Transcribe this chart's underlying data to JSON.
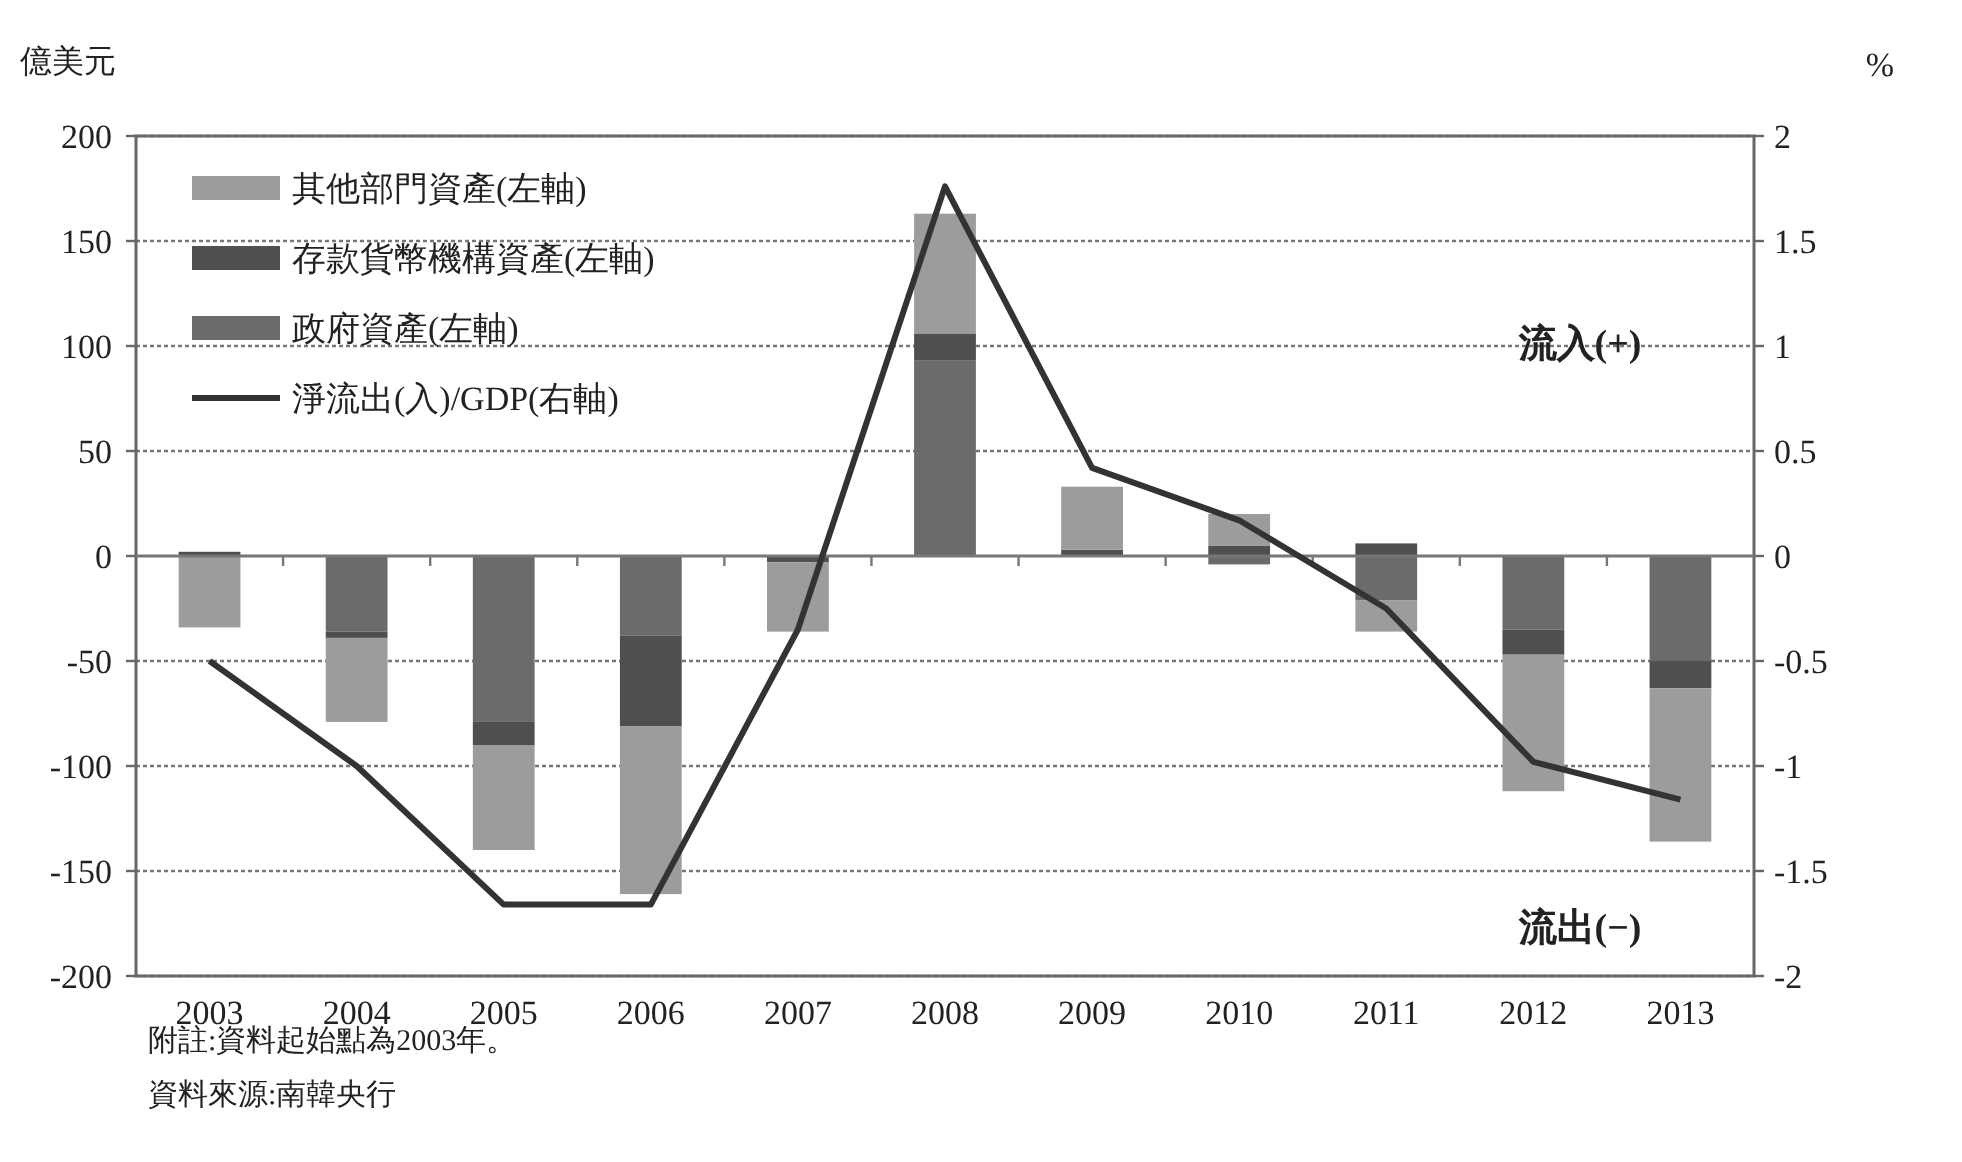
{
  "chart_data": {
    "type": "bar",
    "stacked": true,
    "ylabel": "億美元",
    "y2label": "%",
    "categories": [
      "2003",
      "2004",
      "2005",
      "2006",
      "2007",
      "2008",
      "2009",
      "2010",
      "2011",
      "2012",
      "2013"
    ],
    "series": [
      {
        "name": "政府資產(左軸)",
        "color": "#6b6b6b",
        "values": [
          0,
          -36,
          -79,
          -38,
          0,
          93,
          0,
          -4,
          -21,
          -35,
          -50
        ]
      },
      {
        "name": "存款貨幣機構資產(左軸)",
        "color": "#4f4f4f",
        "values": [
          2,
          -3,
          -11,
          -43,
          -3,
          13,
          3,
          5,
          6,
          -12,
          -13
        ]
      },
      {
        "name": "其他部門資產(左軸)",
        "color": "#9c9c9c",
        "values": [
          -34,
          -40,
          -50,
          -80,
          -33,
          57,
          30,
          15,
          -15,
          -65,
          -73
        ]
      },
      {
        "name": "淨流出(入)/GDP(右軸)",
        "type": "line",
        "axis": "y2",
        "color": "#333333",
        "values": [
          -0.5,
          -1.0,
          -1.66,
          -1.66,
          -0.35,
          1.76,
          0.42,
          0.17,
          -0.25,
          -0.98,
          -1.16
        ]
      }
    ],
    "ylim": [
      -200,
      200
    ],
    "yticks": [
      -200,
      -150,
      -100,
      -50,
      0,
      50,
      100,
      150,
      200
    ],
    "y2lim": [
      -2,
      2
    ],
    "y2ticks": [
      -2,
      -1.5,
      -1,
      -0.5,
      0,
      0.5,
      1,
      1.5,
      2
    ],
    "grid": "y",
    "legend": "top left",
    "annotations": [
      "流入(+)",
      "流出(−)",
      "附註:資料起始點為2003年。",
      "資料來源:南韓央行"
    ]
  }
}
